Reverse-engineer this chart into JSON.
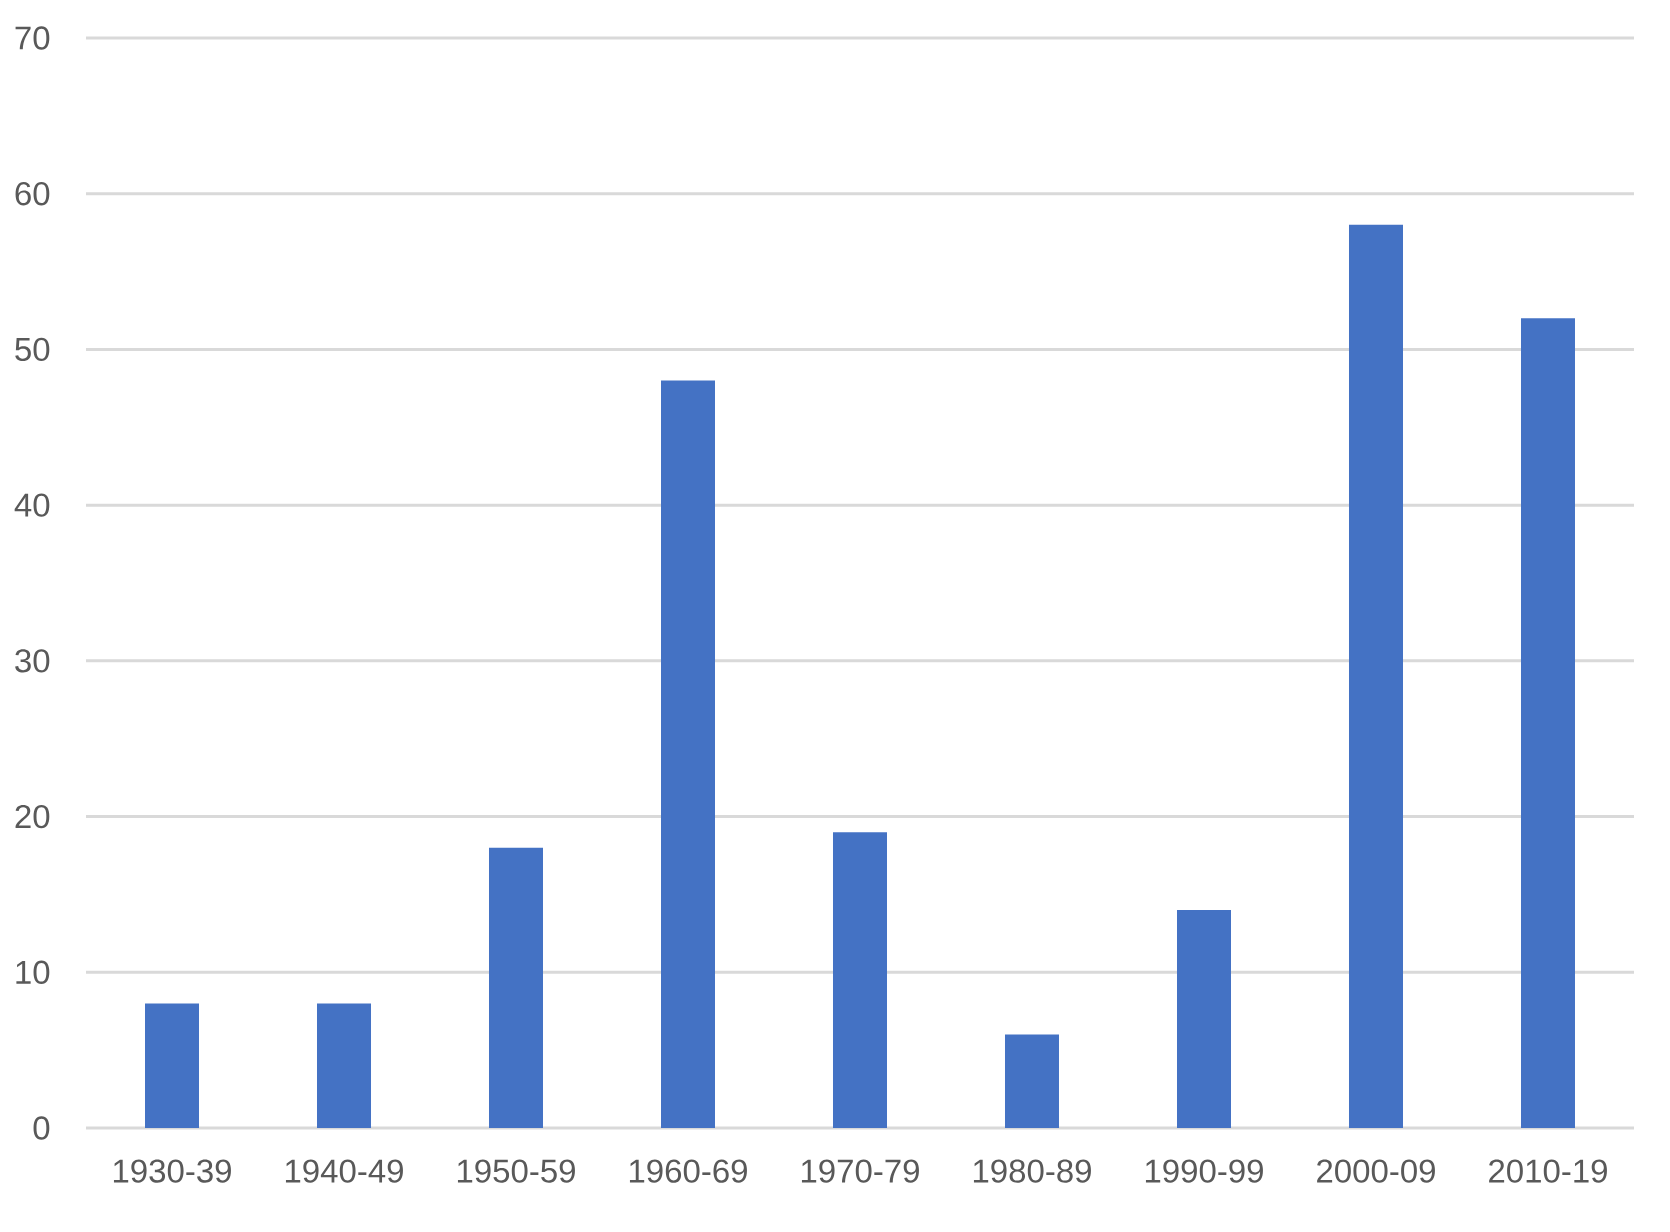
{
  "chart_data": {
    "type": "bar",
    "categories": [
      "1930-39",
      "1940-49",
      "1950-59",
      "1960-69",
      "1970-79",
      "1980-89",
      "1990-99",
      "2000-09",
      "2010-19"
    ],
    "values": [
      8,
      8,
      18,
      48,
      19,
      6,
      14,
      58,
      52
    ],
    "color": "#4472c4",
    "ylim": [
      0,
      70
    ],
    "yticks": [
      0,
      10,
      20,
      30,
      40,
      50,
      60,
      70
    ],
    "grid": "y"
  }
}
